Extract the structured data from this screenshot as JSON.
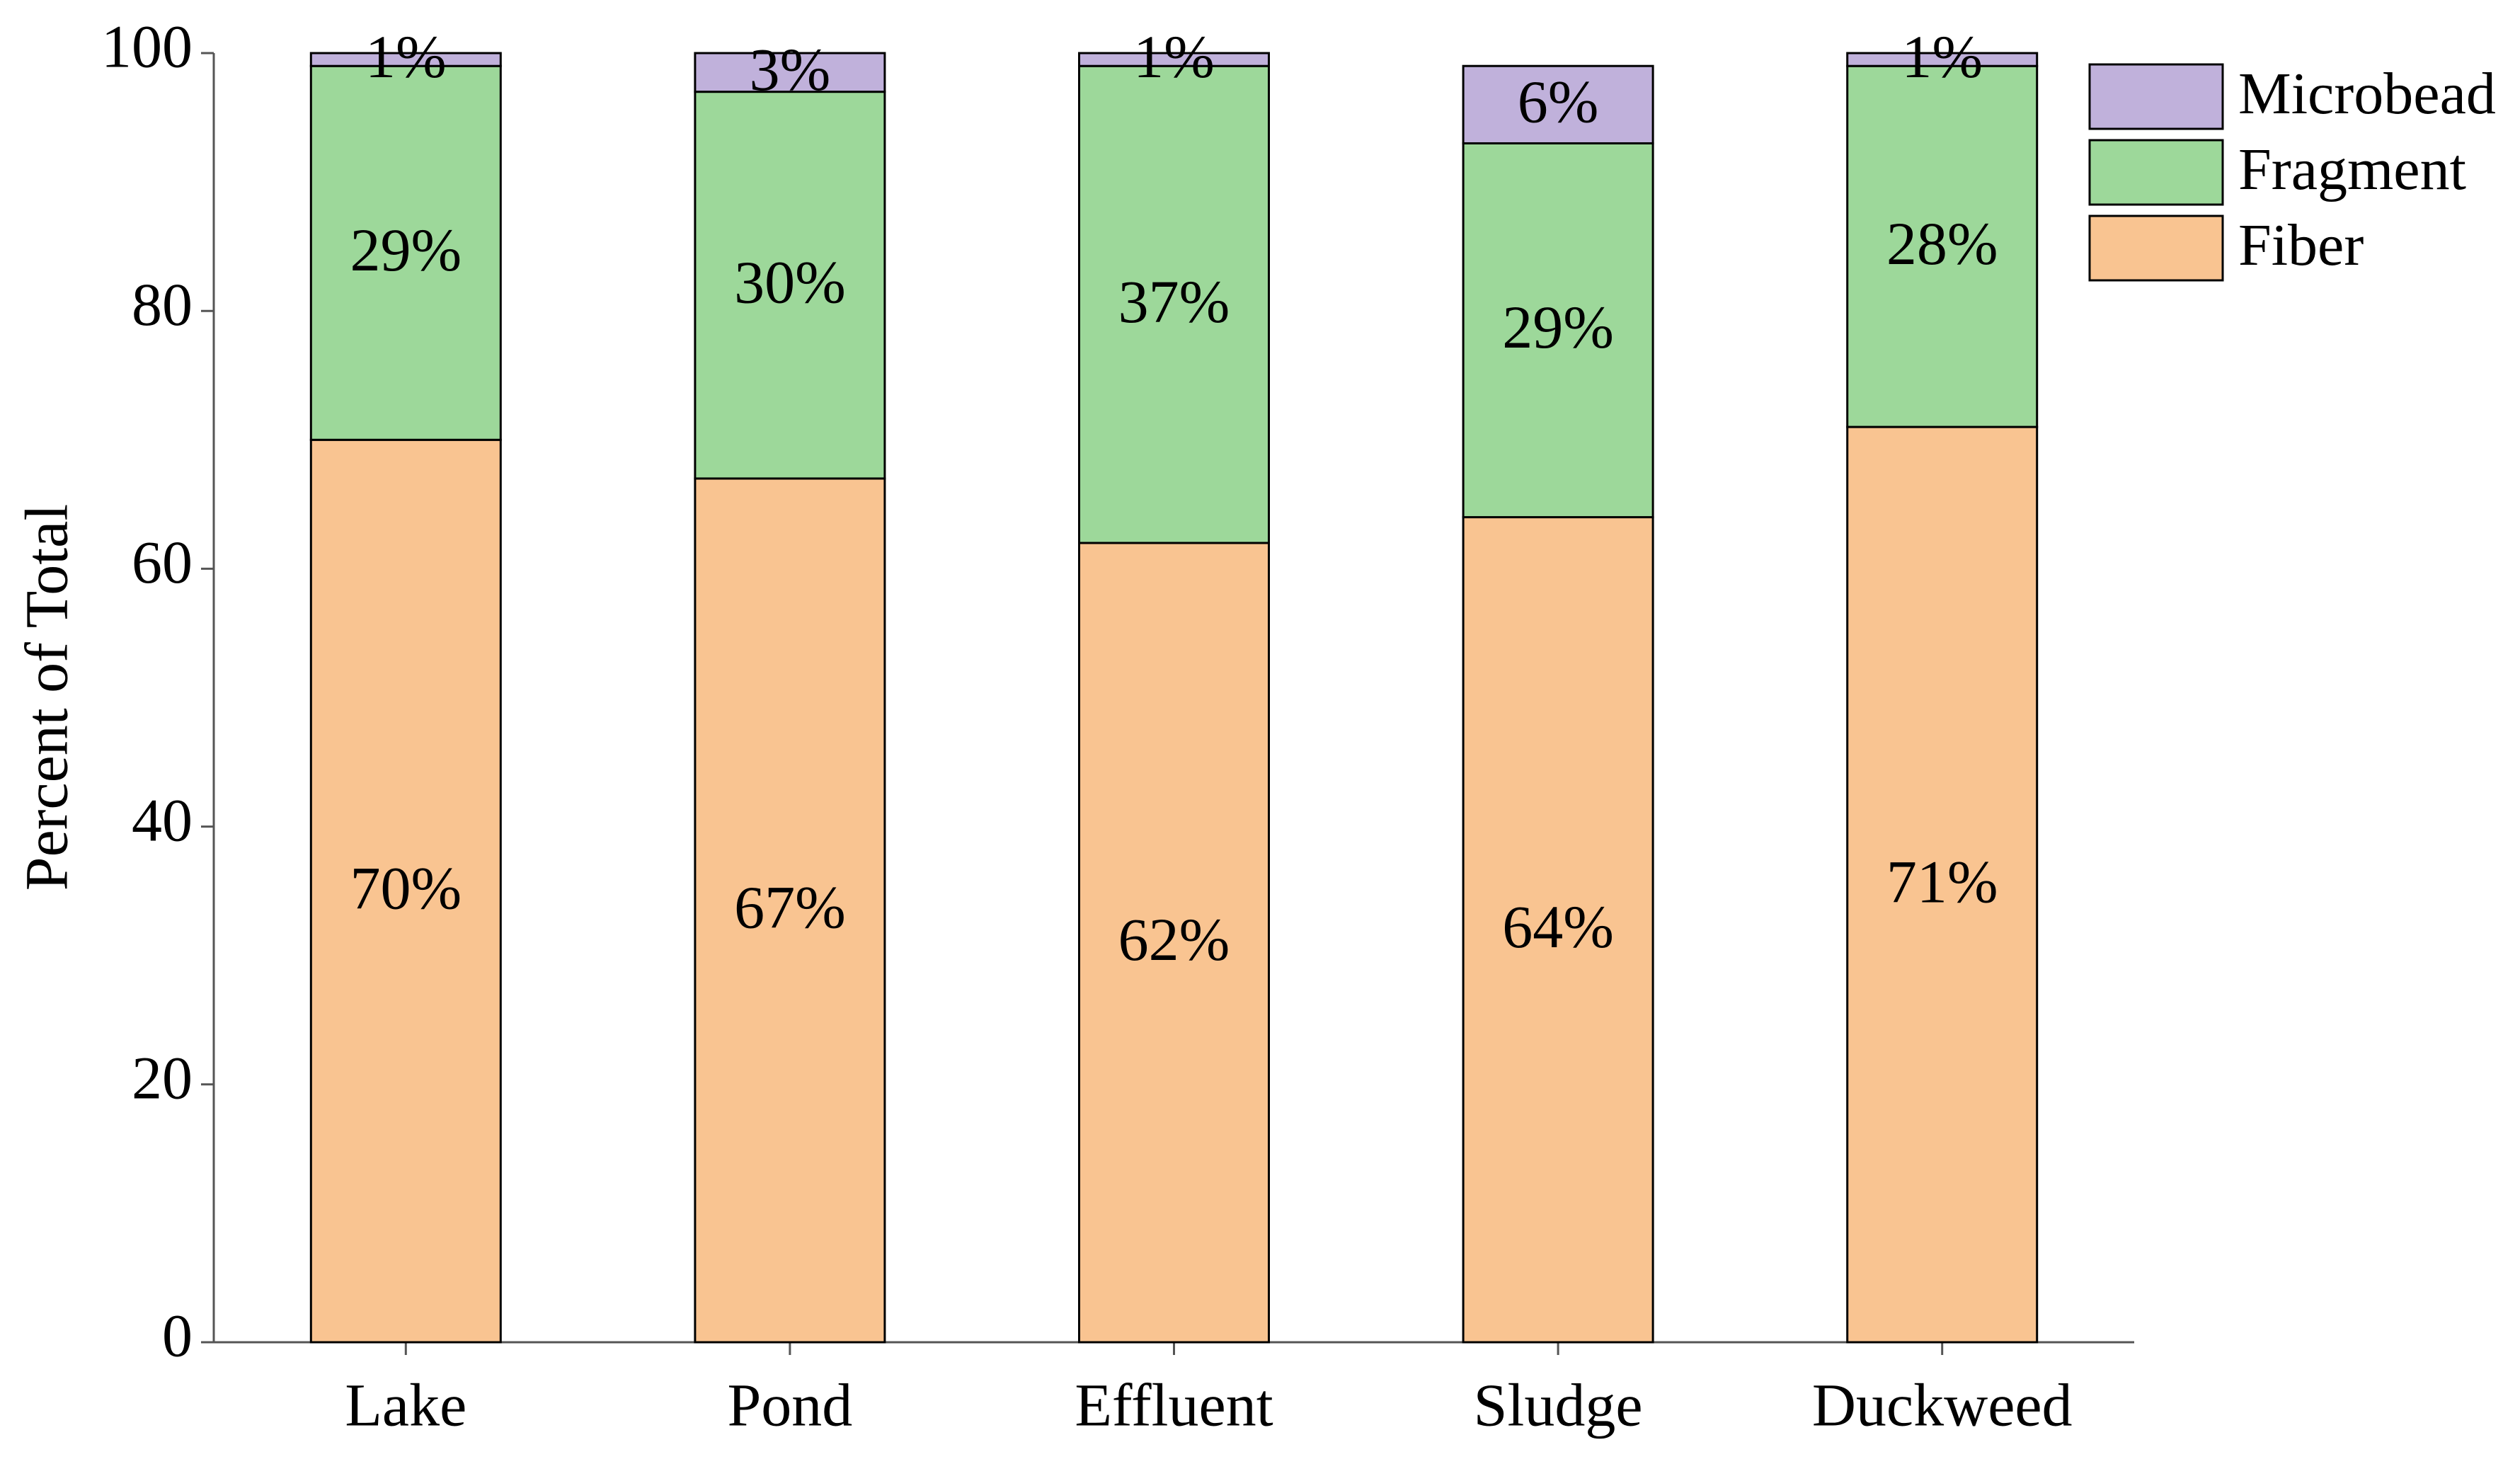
{
  "chart_data": {
    "type": "stacked-bar",
    "ylabel": "Percent of Total",
    "categories": [
      "Lake",
      "Pond",
      "Effluent",
      "Sludge",
      "Duckweed"
    ],
    "series": [
      {
        "name": "Fiber",
        "color": "#f9c491",
        "values": [
          70,
          67,
          62,
          64,
          71
        ],
        "value_labels": [
          "70%",
          "67%",
          "62%",
          "64%",
          "71%"
        ]
      },
      {
        "name": "Fragment",
        "color": "#9dd89a",
        "values": [
          29,
          30,
          37,
          29,
          28
        ],
        "value_labels": [
          "29%",
          "30%",
          "37%",
          "29%",
          "28%"
        ]
      },
      {
        "name": "Microbead",
        "color": "#c0b1db",
        "values": [
          1,
          3,
          1,
          6,
          1
        ],
        "value_labels": [
          "1%",
          "3%",
          "1%",
          "6%",
          "1%"
        ]
      }
    ],
    "ylim": [
      0,
      100
    ],
    "yticks": [
      0,
      20,
      40,
      60,
      80,
      100
    ],
    "legend": "right"
  }
}
